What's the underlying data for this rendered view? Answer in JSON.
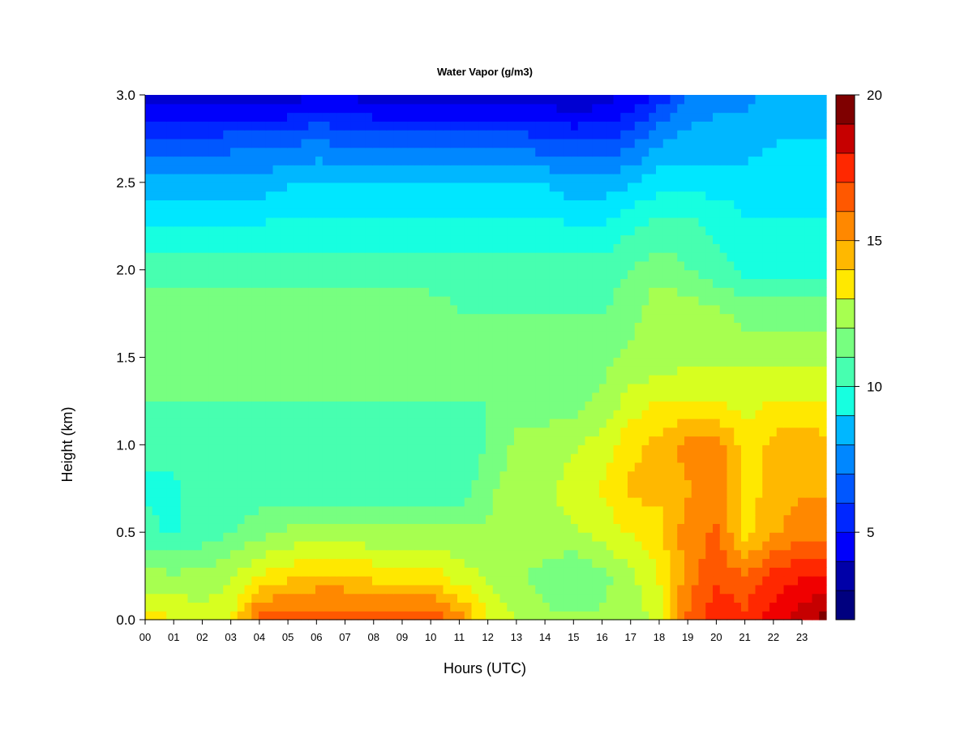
{
  "chart_data": {
    "type": "heatmap",
    "title": "Water Vapor (g/m3)",
    "xlabel": "Hours (UTC)",
    "ylabel": "Height (km)",
    "x_tick_labels": [
      "00",
      "01",
      "02",
      "03",
      "04",
      "05",
      "06",
      "07",
      "08",
      "09",
      "10",
      "11",
      "12",
      "13",
      "14",
      "15",
      "16",
      "17",
      "18",
      "19",
      "20",
      "21",
      "22",
      "23"
    ],
    "x_ticks": [
      0,
      1,
      2,
      3,
      4,
      5,
      6,
      7,
      8,
      9,
      10,
      11,
      12,
      13,
      14,
      15,
      16,
      17,
      18,
      19,
      20,
      21,
      22,
      23
    ],
    "xlim": [
      0,
      23.85
    ],
    "y_tick_labels": [
      "0.0",
      "0.5",
      "1.0",
      "1.5",
      "2.0",
      "2.5",
      "3.0"
    ],
    "y_ticks": [
      0.0,
      0.5,
      1.0,
      1.5,
      2.0,
      2.5,
      3.0
    ],
    "ylim": [
      0,
      3.0
    ],
    "colorbar": {
      "range": [
        2,
        20
      ],
      "ticks": [
        5,
        10,
        15,
        20
      ],
      "tick_labels": [
        "5",
        "10",
        "15",
        "20"
      ],
      "levels": 18,
      "colors": [
        "#00007f",
        "#0000a8",
        "#0000d2",
        "#0000fb",
        "#0027ff",
        "#0057ff",
        "#0087ff",
        "#00b7ff",
        "#00e7ff",
        "#17ffe0",
        "#47ffb0",
        "#77ff80",
        "#a7ff50",
        "#d7ff20",
        "#ffe800",
        "#ffb800",
        "#ff8800",
        "#ff5800",
        "#ff2800",
        "#f00000",
        "#c60000",
        "#7f0000"
      ]
    },
    "time_hours": [
      0,
      1,
      2,
      3,
      4,
      5,
      6,
      7,
      8,
      9,
      10,
      11,
      12,
      13,
      14,
      15,
      16,
      17,
      18,
      19,
      20,
      21,
      22,
      23,
      23.85
    ],
    "height_km": [
      0.0,
      0.25,
      0.5,
      0.75,
      1.0,
      1.25,
      1.5,
      1.75,
      2.0,
      2.25,
      2.5,
      2.75,
      3.0
    ],
    "values": [
      [
        14.0,
        13.5,
        13.0,
        13.5,
        16.5,
        16.5,
        16.5,
        16.5,
        16.5,
        16.5,
        16.5,
        15.5,
        13.5,
        12.5,
        12.0,
        12.0,
        12.0,
        12.0,
        13.0,
        16.0,
        17.5,
        17.0,
        18.0,
        19.0,
        19.5
      ],
      [
        12.0,
        12.0,
        12.0,
        12.5,
        13.5,
        14.0,
        14.5,
        14.5,
        14.0,
        14.0,
        14.0,
        13.0,
        12.5,
        12.0,
        11.5,
        11.0,
        11.5,
        12.5,
        13.5,
        15.5,
        16.5,
        16.0,
        17.0,
        17.5,
        17.5
      ],
      [
        10.5,
        10.0,
        10.5,
        11.0,
        11.5,
        12.0,
        12.0,
        12.0,
        12.0,
        12.0,
        12.0,
        12.0,
        12.0,
        12.5,
        12.5,
        12.5,
        13.0,
        13.5,
        14.0,
        15.5,
        16.0,
        14.0,
        15.0,
        15.5,
        15.5
      ],
      [
        10.0,
        10.0,
        10.5,
        10.5,
        10.5,
        10.5,
        10.5,
        10.5,
        10.5,
        10.5,
        10.5,
        10.5,
        11.5,
        12.5,
        12.5,
        13.0,
        13.5,
        14.5,
        14.5,
        15.0,
        15.5,
        14.0,
        14.5,
        15.0,
        15.0
      ],
      [
        10.5,
        10.5,
        10.5,
        10.5,
        10.5,
        10.5,
        10.5,
        10.5,
        10.5,
        10.5,
        10.5,
        10.5,
        11.0,
        12.0,
        12.0,
        12.5,
        13.0,
        14.0,
        14.5,
        15.5,
        15.5,
        14.0,
        14.5,
        15.0,
        14.5
      ],
      [
        11.0,
        11.0,
        11.0,
        11.0,
        11.0,
        11.0,
        11.0,
        11.0,
        11.0,
        11.0,
        11.0,
        11.0,
        11.0,
        11.5,
        11.5,
        11.5,
        12.0,
        13.0,
        13.5,
        13.5,
        13.5,
        13.0,
        13.5,
        13.5,
        13.5
      ],
      [
        11.0,
        11.0,
        11.0,
        11.0,
        11.0,
        11.0,
        11.0,
        11.0,
        11.0,
        11.0,
        11.0,
        11.0,
        11.0,
        11.0,
        11.0,
        11.0,
        11.5,
        12.0,
        12.0,
        12.5,
        12.5,
        12.5,
        12.5,
        12.5,
        12.5
      ],
      [
        11.5,
        11.5,
        11.5,
        11.5,
        11.5,
        11.5,
        11.5,
        11.5,
        11.5,
        11.5,
        11.5,
        11.0,
        11.0,
        11.0,
        11.0,
        11.0,
        11.0,
        11.5,
        12.5,
        12.5,
        12.0,
        11.5,
        11.5,
        11.5,
        11.5
      ],
      [
        10.5,
        10.5,
        10.5,
        10.5,
        10.5,
        10.5,
        10.5,
        10.5,
        10.5,
        10.5,
        10.5,
        10.5,
        10.5,
        10.5,
        10.5,
        10.5,
        10.5,
        11.0,
        11.5,
        11.0,
        10.5,
        10.0,
        10.0,
        10.0,
        10.0
      ],
      [
        9.5,
        9.5,
        9.5,
        9.5,
        9.5,
        9.5,
        9.5,
        9.5,
        9.5,
        9.5,
        9.5,
        9.5,
        9.5,
        9.5,
        9.5,
        9.5,
        9.5,
        10.0,
        10.5,
        10.5,
        10.0,
        9.5,
        9.5,
        9.5,
        9.5
      ],
      [
        8.0,
        8.0,
        8.0,
        8.0,
        8.0,
        8.5,
        8.5,
        8.5,
        8.5,
        8.5,
        8.5,
        8.5,
        8.5,
        8.5,
        8.5,
        8.0,
        8.0,
        8.5,
        9.0,
        9.0,
        9.0,
        9.0,
        9.0,
        9.0,
        9.0
      ],
      [
        6.0,
        6.0,
        6.0,
        6.5,
        6.5,
        6.5,
        7.0,
        6.5,
        6.5,
        6.5,
        6.5,
        6.5,
        6.5,
        6.5,
        6.0,
        6.0,
        6.0,
        6.5,
        7.5,
        8.0,
        8.0,
        8.0,
        8.5,
        8.5,
        8.5
      ],
      [
        4.0,
        4.0,
        4.0,
        4.0,
        4.0,
        4.0,
        4.5,
        4.5,
        4.0,
        4.0,
        4.0,
        4.0,
        4.0,
        4.0,
        4.0,
        3.5,
        4.0,
        4.5,
        5.5,
        7.0,
        7.5,
        7.5,
        8.0,
        8.0,
        8.0
      ]
    ]
  }
}
